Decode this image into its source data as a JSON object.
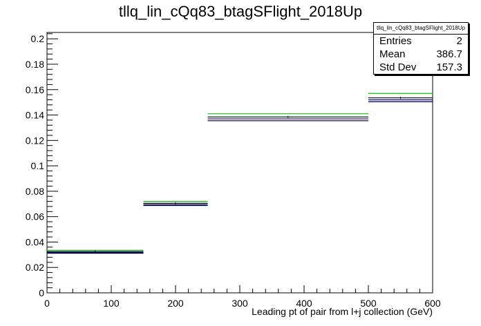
{
  "title": "tllq_lin_cQq83_btagSFlight_2018Up",
  "stats": {
    "name": "tllq_lin_cQq83_btagSFlight_2018Up",
    "rows": [
      {
        "label": "Entries",
        "value": "2"
      },
      {
        "label": "Mean",
        "value": "386.7"
      },
      {
        "label": "Std Dev",
        "value": "157.3"
      }
    ]
  },
  "chart_data": {
    "type": "bar",
    "title": "tllq_lin_cQq83_btagSFlight_2018Up",
    "xlabel": "Leading pt of pair from l+j collection (GeV)",
    "ylabel": "",
    "xlim": [
      0,
      600
    ],
    "ylim": [
      0,
      0.205
    ],
    "bin_edges": [
      0,
      150,
      250,
      500,
      600
    ],
    "x_ticks": [
      0,
      100,
      200,
      300,
      400,
      500,
      600
    ],
    "y_ticks": [
      0,
      0.02,
      0.04,
      0.06,
      0.08,
      0.1,
      0.12,
      0.14,
      0.16,
      0.18,
      0.2
    ],
    "y_tick_labels": [
      "0",
      "0.02",
      "0.04",
      "0.06",
      "0.08",
      "0.1",
      "0.12",
      "0.14",
      "0.16",
      "0.18",
      "0.2"
    ],
    "grid": false,
    "legend": "none",
    "series": [
      {
        "color": "#00cc00",
        "values": [
          0.0335,
          0.072,
          0.141,
          0.157
        ]
      },
      {
        "color": "#000000",
        "values": [
          0.0325,
          0.0705,
          0.1385,
          0.1535
        ]
      },
      {
        "color": "#0000cc",
        "values": [
          0.0318,
          0.0695,
          0.137,
          0.152
        ]
      },
      {
        "color": "#000000",
        "values": [
          0.0312,
          0.0688,
          0.1355,
          0.1505
        ]
      }
    ]
  }
}
